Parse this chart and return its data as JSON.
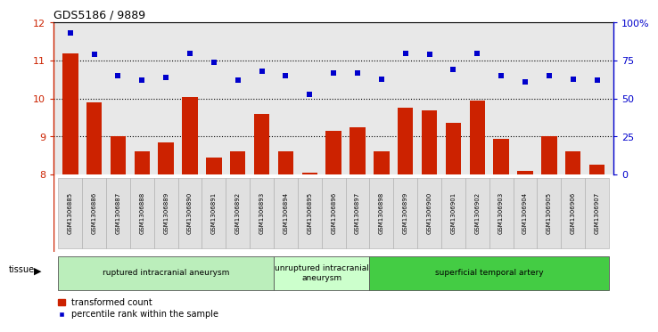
{
  "title": "GDS5186 / 9889",
  "samples": [
    "GSM1306885",
    "GSM1306886",
    "GSM1306887",
    "GSM1306888",
    "GSM1306889",
    "GSM1306890",
    "GSM1306891",
    "GSM1306892",
    "GSM1306893",
    "GSM1306894",
    "GSM1306895",
    "GSM1306896",
    "GSM1306897",
    "GSM1306898",
    "GSM1306899",
    "GSM1306900",
    "GSM1306901",
    "GSM1306902",
    "GSM1306903",
    "GSM1306904",
    "GSM1306905",
    "GSM1306906",
    "GSM1306907"
  ],
  "bar_values": [
    11.2,
    9.9,
    9.0,
    8.6,
    8.85,
    10.05,
    8.45,
    8.6,
    9.6,
    8.6,
    8.05,
    9.15,
    9.25,
    8.6,
    9.75,
    9.7,
    9.35,
    9.95,
    8.95,
    8.1,
    9.0,
    8.6,
    8.25
  ],
  "dot_values": [
    93,
    79,
    65,
    62,
    64,
    80,
    74,
    62,
    68,
    65,
    53,
    67,
    67,
    63,
    80,
    79,
    69,
    80,
    65,
    61,
    65,
    63,
    62
  ],
  "ylim_left": [
    8,
    12
  ],
  "ylim_right": [
    0,
    100
  ],
  "bar_color": "#cc2200",
  "dot_color": "#0000cc",
  "plot_bg": "#e8e8e8",
  "tissue_groups": [
    {
      "label": "ruptured intracranial aneurysm",
      "start": 0,
      "end": 9,
      "color": "#bbeebb"
    },
    {
      "label": "unruptured intracranial\naneurysm",
      "start": 9,
      "end": 13,
      "color": "#ccffcc"
    },
    {
      "label": "superficial temporal artery",
      "start": 13,
      "end": 23,
      "color": "#44cc44"
    }
  ],
  "legend_bar_label": "transformed count",
  "legend_dot_label": "percentile rank within the sample",
  "tissue_label": "tissue",
  "left_yticks": [
    8,
    9,
    10,
    11,
    12
  ],
  "right_yticks": [
    0,
    25,
    50,
    75,
    100
  ],
  "right_yticklabels": [
    "0",
    "25",
    "50",
    "75",
    "100%"
  ],
  "dotted_lines": [
    9,
    10,
    11
  ]
}
